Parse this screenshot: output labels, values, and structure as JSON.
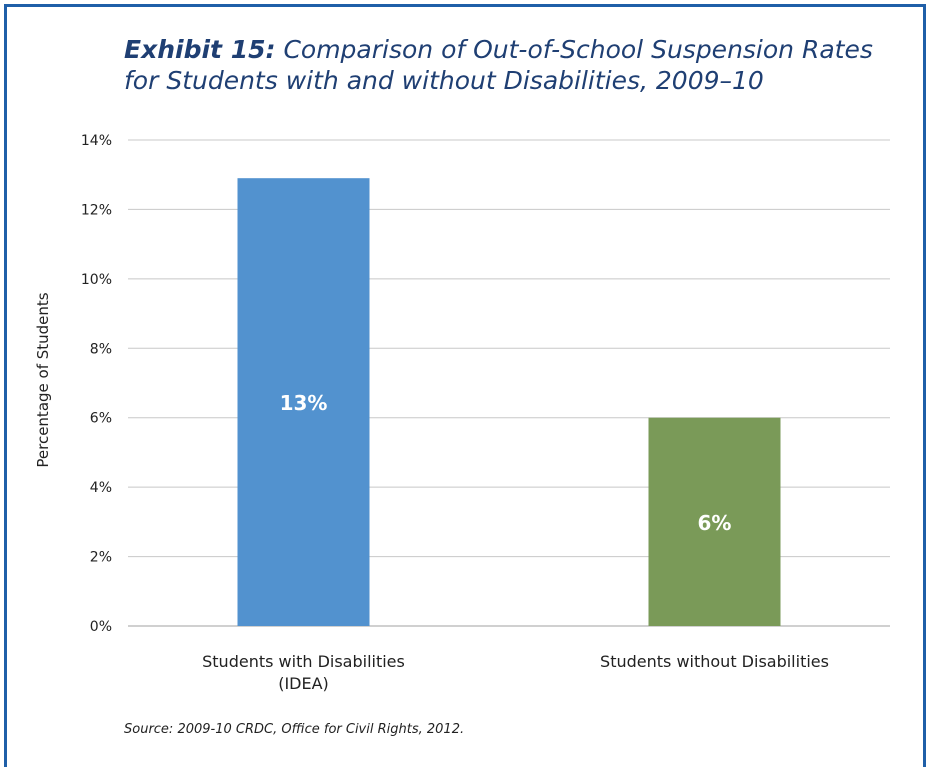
{
  "title_prefix": "Exhibit 15:",
  "title_rest": "Comparison of Out-of-School Suspension Rates for Students with and without Disabilities, 2009–10",
  "source": "Source: 2009-10 CRDC, Office for Civil Rights, 2012.",
  "chart_data": {
    "type": "bar",
    "categories": [
      "Students with Disabilities (IDEA)",
      "Students without Disabilities"
    ],
    "category_label_lines": [
      [
        "Students with Disabilities",
        "(IDEA)"
      ],
      [
        "Students without Disabilities"
      ]
    ],
    "values": [
      12.9,
      6.0
    ],
    "data_labels": [
      "13%",
      "6%"
    ],
    "bar_colors": [
      "#5292cf",
      "#7a9a58"
    ],
    "ylabel": "Percentage of Students",
    "xlabel": "",
    "ylim": [
      0,
      14
    ],
    "yticks": [
      0,
      2,
      4,
      6,
      8,
      10,
      12,
      14
    ],
    "ytick_labels": [
      "0%",
      "2%",
      "4%",
      "6%",
      "8%",
      "10%",
      "12%",
      "14%"
    ],
    "grid": true,
    "legend": "none"
  },
  "colors": {
    "frame": "#1f5fa8",
    "title": "#1f3f73",
    "grid": "#c8c8c8",
    "axis": "#a0a0a0"
  }
}
